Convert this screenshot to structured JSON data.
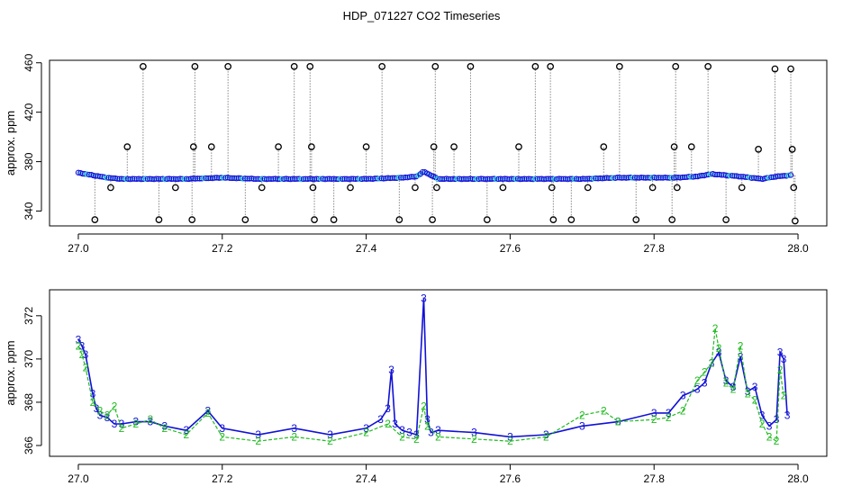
{
  "figure_title": "HDP_071227  CO2 Timeseries",
  "colors": {
    "blue": "#1111d6",
    "cyan": "#20c8d8",
    "green": "#22bb22",
    "black": "#000000",
    "gray_line": "#888888"
  },
  "chart_data": [
    {
      "type": "scatter",
      "title": "",
      "xlabel": "",
      "ylabel": "approx. ppm",
      "xlim": [
        26.96,
        28.04
      ],
      "ylim": [
        328,
        462
      ],
      "xticks": [
        27.0,
        27.2,
        27.4,
        27.6,
        27.8,
        28.0
      ],
      "xtick_labels": [
        "27.0",
        "27.2",
        "27.4",
        "27.6",
        "27.8",
        "28.0"
      ],
      "yticks": [
        340,
        380,
        420,
        460
      ],
      "ytick_labels": [
        "340",
        "380",
        "420",
        "460"
      ],
      "grid": false,
      "baseline_series": {
        "x": [
          27.0,
          27.02,
          27.04,
          27.06,
          27.1,
          27.15,
          27.2,
          27.25,
          27.3,
          27.35,
          27.4,
          27.45,
          27.47,
          27.48,
          27.5,
          27.55,
          27.6,
          27.65,
          27.7,
          27.75,
          27.8,
          27.83,
          27.86,
          27.88,
          27.9,
          27.92,
          27.95,
          27.97,
          27.99
        ],
        "y": [
          371,
          369,
          367,
          366,
          366,
          366,
          367,
          366,
          366,
          366,
          366,
          367,
          368,
          372,
          366,
          366,
          366,
          366,
          366,
          367,
          367,
          367,
          368,
          370,
          369,
          368,
          366,
          368,
          369
        ]
      },
      "outlier_points": [
        {
          "x": 27.023,
          "y": 333
        },
        {
          "x": 27.045,
          "y": 359
        },
        {
          "x": 27.068,
          "y": 392
        },
        {
          "x": 27.09,
          "y": 457
        },
        {
          "x": 27.112,
          "y": 333
        },
        {
          "x": 27.135,
          "y": 359
        },
        {
          "x": 27.158,
          "y": 333
        },
        {
          "x": 27.16,
          "y": 392
        },
        {
          "x": 27.162,
          "y": 457
        },
        {
          "x": 27.185,
          "y": 392
        },
        {
          "x": 27.208,
          "y": 457
        },
        {
          "x": 27.232,
          "y": 333
        },
        {
          "x": 27.255,
          "y": 359
        },
        {
          "x": 27.278,
          "y": 392
        },
        {
          "x": 27.3,
          "y": 457
        },
        {
          "x": 27.322,
          "y": 457
        },
        {
          "x": 27.324,
          "y": 392
        },
        {
          "x": 27.326,
          "y": 359
        },
        {
          "x": 27.328,
          "y": 333
        },
        {
          "x": 27.355,
          "y": 333
        },
        {
          "x": 27.378,
          "y": 359
        },
        {
          "x": 27.4,
          "y": 392
        },
        {
          "x": 27.422,
          "y": 457
        },
        {
          "x": 27.446,
          "y": 333
        },
        {
          "x": 27.468,
          "y": 359
        },
        {
          "x": 27.492,
          "y": 333
        },
        {
          "x": 27.494,
          "y": 392
        },
        {
          "x": 27.496,
          "y": 457
        },
        {
          "x": 27.498,
          "y": 359
        },
        {
          "x": 27.522,
          "y": 392
        },
        {
          "x": 27.545,
          "y": 457
        },
        {
          "x": 27.568,
          "y": 333
        },
        {
          "x": 27.59,
          "y": 359
        },
        {
          "x": 27.612,
          "y": 392
        },
        {
          "x": 27.635,
          "y": 457
        },
        {
          "x": 27.656,
          "y": 457
        },
        {
          "x": 27.658,
          "y": 359
        },
        {
          "x": 27.66,
          "y": 333
        },
        {
          "x": 27.685,
          "y": 333
        },
        {
          "x": 27.708,
          "y": 359
        },
        {
          "x": 27.73,
          "y": 392
        },
        {
          "x": 27.752,
          "y": 457
        },
        {
          "x": 27.775,
          "y": 333
        },
        {
          "x": 27.798,
          "y": 359
        },
        {
          "x": 27.825,
          "y": 333
        },
        {
          "x": 27.828,
          "y": 392
        },
        {
          "x": 27.83,
          "y": 457
        },
        {
          "x": 27.832,
          "y": 359
        },
        {
          "x": 27.852,
          "y": 392
        },
        {
          "x": 27.875,
          "y": 457
        },
        {
          "x": 27.9,
          "y": 333
        },
        {
          "x": 27.922,
          "y": 359
        },
        {
          "x": 27.945,
          "y": 390
        },
        {
          "x": 27.968,
          "y": 455
        },
        {
          "x": 27.99,
          "y": 455
        },
        {
          "x": 27.992,
          "y": 390
        },
        {
          "x": 27.994,
          "y": 359
        },
        {
          "x": 27.996,
          "y": 332
        }
      ]
    },
    {
      "type": "line",
      "title": "",
      "xlabel": "",
      "ylabel": "approx. ppm",
      "xlim": [
        26.96,
        28.04
      ],
      "ylim": [
        365.5,
        373.2
      ],
      "xticks": [
        27.0,
        27.2,
        27.4,
        27.6,
        27.8,
        28.0
      ],
      "xtick_labels": [
        "27.0",
        "27.2",
        "27.4",
        "27.6",
        "27.8",
        "28.0"
      ],
      "yticks": [
        366,
        368,
        370,
        372
      ],
      "ytick_labels": [
        "366",
        "368",
        "370",
        "372"
      ],
      "grid": false,
      "series": [
        {
          "marker": "3",
          "x": [
            27.0,
            27.005,
            27.01,
            27.02,
            27.025,
            27.03,
            27.04,
            27.05,
            27.06,
            27.08,
            27.1,
            27.12,
            27.15,
            27.18,
            27.2,
            27.25,
            27.3,
            27.35,
            27.4,
            27.42,
            27.43,
            27.435,
            27.44,
            27.45,
            27.46,
            27.47,
            27.48,
            27.485,
            27.49,
            27.5,
            27.55,
            27.6,
            27.65,
            27.7,
            27.75,
            27.8,
            27.82,
            27.84,
            27.86,
            27.87,
            27.88,
            27.89,
            27.9,
            27.91,
            27.92,
            27.93,
            27.94,
            27.95,
            27.96,
            27.97,
            27.975,
            27.98,
            27.985
          ],
          "y": [
            370.9,
            370.6,
            370.2,
            368.4,
            367.7,
            367.4,
            367.3,
            367.0,
            367.0,
            367.1,
            367.1,
            366.9,
            366.7,
            367.6,
            366.8,
            366.5,
            366.8,
            366.5,
            366.8,
            367.2,
            367.7,
            369.5,
            367.0,
            366.7,
            366.6,
            366.5,
            372.8,
            367.2,
            366.6,
            366.7,
            366.6,
            366.4,
            366.5,
            366.9,
            367.1,
            367.5,
            367.5,
            368.3,
            368.6,
            368.9,
            369.8,
            370.3,
            369.0,
            368.7,
            370.1,
            368.5,
            368.7,
            367.4,
            366.9,
            367.2,
            370.3,
            370.0,
            367.4
          ]
        },
        {
          "marker": "2",
          "x": [
            27.0,
            27.005,
            27.01,
            27.02,
            27.03,
            27.04,
            27.05,
            27.06,
            27.08,
            27.1,
            27.12,
            27.15,
            27.18,
            27.2,
            27.25,
            27.3,
            27.35,
            27.4,
            27.43,
            27.45,
            27.47,
            27.48,
            27.485,
            27.5,
            27.55,
            27.6,
            27.65,
            27.7,
            27.73,
            27.75,
            27.8,
            27.82,
            27.84,
            27.86,
            27.87,
            27.88,
            27.885,
            27.89,
            27.9,
            27.91,
            27.92,
            27.93,
            27.94,
            27.95,
            27.96,
            27.97,
            27.975,
            27.98
          ],
          "y": [
            370.6,
            370.2,
            369.6,
            368.0,
            367.6,
            367.4,
            367.8,
            366.8,
            367.0,
            367.2,
            366.8,
            366.5,
            367.5,
            366.4,
            366.2,
            366.4,
            366.2,
            366.6,
            367.0,
            366.4,
            366.3,
            367.8,
            366.9,
            366.4,
            366.3,
            366.2,
            366.4,
            367.4,
            367.6,
            367.1,
            367.2,
            367.3,
            367.6,
            369.0,
            369.4,
            369.8,
            371.4,
            370.5,
            368.9,
            368.6,
            370.6,
            368.4,
            368.1,
            367.0,
            366.4,
            366.2,
            369.5,
            368.3
          ]
        }
      ]
    }
  ]
}
